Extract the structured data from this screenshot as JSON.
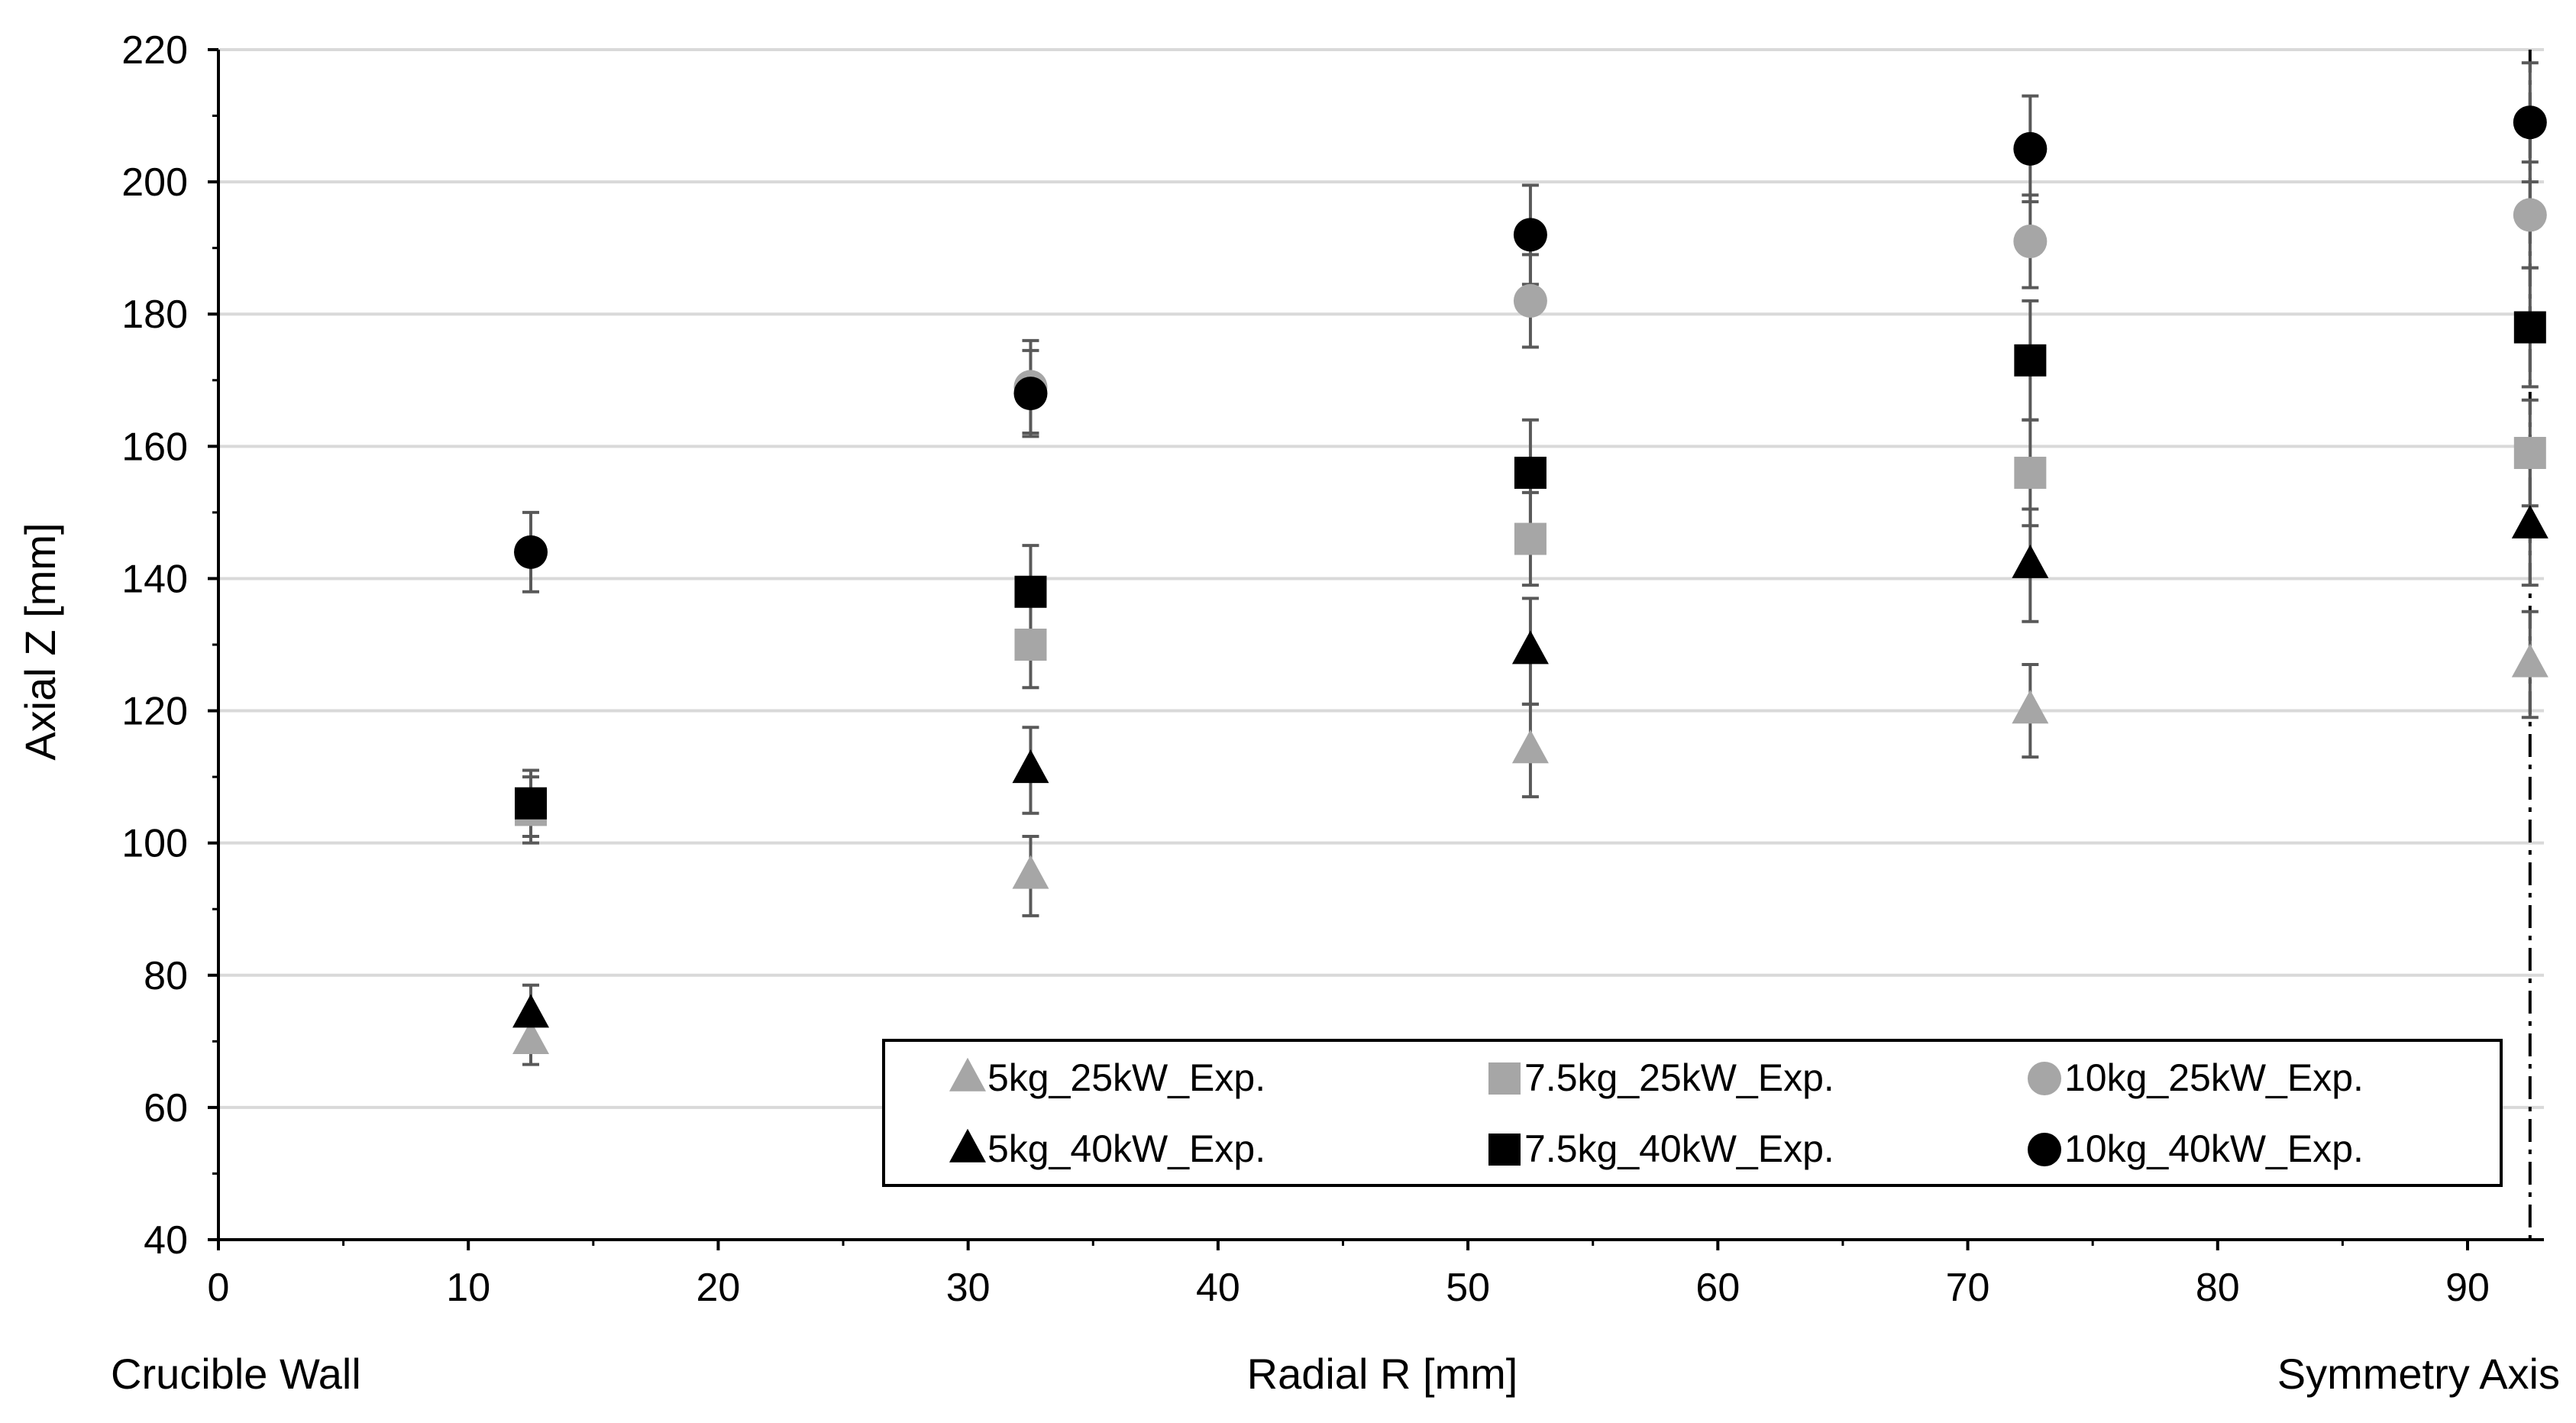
{
  "chart_data": {
    "type": "scatter",
    "title": "",
    "xlabel": "Radial R [mm]",
    "ylabel": "Axial Z [mm]",
    "x_left_annotation": "Crucible Wall",
    "x_right_annotation": "Symmetry Axis",
    "xlim": [
      0,
      93
    ],
    "ylim": [
      40,
      220
    ],
    "xticks": [
      0,
      10,
      20,
      30,
      40,
      50,
      60,
      70,
      80,
      90
    ],
    "yticks": [
      40,
      60,
      80,
      100,
      120,
      140,
      160,
      180,
      200,
      220
    ],
    "grid": "horizontal",
    "symmetry_axis_x": 92.5,
    "legend_position": "lower-right",
    "series": [
      {
        "name": "5kg_25kW_Exp.",
        "marker": "triangle",
        "color": "#a6a6a6",
        "x": [
          12.5,
          32.5,
          52.5,
          72.5,
          92.5
        ],
        "y": [
          70,
          95,
          114,
          120,
          127
        ],
        "err": [
          3.5,
          6,
          7,
          7,
          8
        ]
      },
      {
        "name": "7.5kg_25kW_Exp.",
        "marker": "square",
        "color": "#a6a6a6",
        "x": [
          12.5,
          32.5,
          52.5,
          72.5,
          92.5
        ],
        "y": [
          105,
          130,
          146,
          156,
          159
        ],
        "err": [
          5,
          6.5,
          7,
          8,
          8
        ]
      },
      {
        "name": "10kg_25kW_Exp.",
        "marker": "circle",
        "color": "#a6a6a6",
        "x": [
          32.5,
          52.5,
          72.5,
          92.5
        ],
        "y": [
          169,
          182,
          191,
          195
        ],
        "err": [
          7,
          7,
          7,
          8
        ]
      },
      {
        "name": "5kg_40kW_Exp.",
        "marker": "triangle",
        "color": "#000000",
        "x": [
          12.5,
          32.5,
          52.5,
          72.5,
          92.5
        ],
        "y": [
          74,
          111,
          129,
          142,
          148
        ],
        "err": [
          4.5,
          6.5,
          8,
          8.5,
          9
        ]
      },
      {
        "name": "7.5kg_40kW_Exp.",
        "marker": "square",
        "color": "#000000",
        "x": [
          12.5,
          32.5,
          52.5,
          72.5,
          92.5
        ],
        "y": [
          106,
          138,
          156,
          173,
          178
        ],
        "err": [
          5,
          7,
          8,
          9,
          9
        ]
      },
      {
        "name": "10kg_40kW_Exp.",
        "marker": "circle",
        "color": "#000000",
        "x": [
          12.5,
          32.5,
          52.5,
          72.5,
          92.5
        ],
        "y": [
          144,
          168,
          192,
          205,
          209
        ],
        "err": [
          6,
          6.5,
          7.5,
          8,
          9
        ]
      }
    ]
  }
}
